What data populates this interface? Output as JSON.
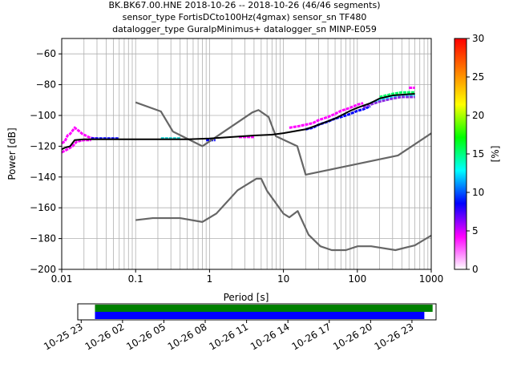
{
  "title_lines": [
    "BK.BK67.00.HNE   2018-10-26 -- 2018-10-26  (46/46 segments)",
    "sensor_type FortisDCto100Hz(4gmax) sensor_sn TF480",
    "datalogger_type GuralpMinimus+ datalogger_sn MINP-E059"
  ],
  "chart_data": [
    {
      "type": "line",
      "xlabel": "Period [s]",
      "ylabel": "Power [dB]",
      "xscale": "log",
      "xlim": [
        0.01,
        1000
      ],
      "ylim": [
        -200,
        -50
      ],
      "x_ticks": [
        0.01,
        0.1,
        1,
        10,
        100,
        1000
      ],
      "x_tick_labels": [
        "0.01",
        "0.1",
        "1",
        "10",
        "100",
        "1000"
      ],
      "y_ticks": [
        -200,
        -180,
        -160,
        -140,
        -120,
        -100,
        -80,
        -60
      ],
      "y_tick_labels": [
        "−200",
        "−180",
        "−160",
        "−140",
        "−120",
        "−100",
        "−80",
        "−60"
      ],
      "grid": true,
      "colorbar": {
        "label": "[%]",
        "range": [
          0,
          30
        ],
        "ticks": [
          0,
          5,
          10,
          15,
          20,
          25,
          30
        ],
        "tick_labels": [
          "0",
          "5",
          "10",
          "15",
          "20",
          "25",
          "30"
        ],
        "colormap": [
          "#ffffff",
          "#ff00ff",
          "#0000ff",
          "#00ffff",
          "#00ff00",
          "#ffff00",
          "#ff8000",
          "#ff0000"
        ]
      },
      "series": [
        {
          "role": "noise-model-upper",
          "color": "#666666",
          "x": [
            0.1,
            0.22,
            0.32,
            0.8,
            3.8,
            4.6,
            6.3,
            7.9,
            15.4,
            20,
            354.8,
            1000
          ],
          "y": [
            -91.5,
            -97.4,
            -110.5,
            -120,
            -98,
            -96.5,
            -101,
            -113.5,
            -120,
            -138.5,
            -126,
            -111.6
          ]
        },
        {
          "role": "noise-model-lower",
          "color": "#666666",
          "x": [
            0.1,
            0.17,
            0.4,
            0.8,
            1.24,
            2.4,
            4.3,
            5,
            6,
            10,
            12,
            15.6,
            21.9,
            31.6,
            45,
            70,
            101,
            154,
            328,
            600,
            1000
          ],
          "y": [
            -168,
            -166.7,
            -166.7,
            -169.2,
            -163.7,
            -148.6,
            -141.1,
            -141.1,
            -149,
            -163.8,
            -166.2,
            -162.1,
            -177.5,
            -185,
            -187.5,
            -187.5,
            -185,
            -185,
            -187.5,
            -184.4,
            -178
          ]
        },
        {
          "role": "mean-psd",
          "color": "#000000",
          "x": [
            0.01,
            0.011,
            0.013,
            0.015,
            0.02,
            0.05,
            0.1,
            0.2,
            0.5,
            1,
            2,
            4,
            7,
            10,
            20,
            30,
            50,
            80,
            100,
            150,
            200,
            300,
            400,
            600
          ],
          "y": [
            -122,
            -121,
            -120,
            -116,
            -115.5,
            -115.5,
            -115.5,
            -115.5,
            -115.5,
            -115,
            -114,
            -113,
            -112.5,
            -111.5,
            -109,
            -106,
            -102,
            -97,
            -95,
            -92,
            -89,
            -87,
            -86.5,
            -86
          ]
        }
      ],
      "histogram_bands": [
        {
          "color": "#ff00ff",
          "x": [
            0.01,
            0.011,
            0.012,
            0.013,
            0.015,
            0.017,
            0.019,
            0.021,
            0.023,
            0.027,
            0.03
          ],
          "y": [
            -118,
            -117,
            -113,
            -112,
            -108,
            -110,
            -112,
            -113,
            -114,
            -115,
            -115
          ]
        },
        {
          "color": "#ff00ff",
          "x": [
            0.01,
            0.012,
            0.014,
            0.016,
            0.02,
            0.025
          ],
          "y": [
            -124,
            -122,
            -120,
            -117,
            -116,
            -116
          ]
        },
        {
          "color": "#0000ff",
          "x": [
            0.025,
            0.04,
            0.06
          ],
          "y": [
            -115,
            -115,
            -115
          ]
        },
        {
          "color": "#00c8c8",
          "x": [
            0.22,
            0.3,
            0.4
          ],
          "y": [
            -115,
            -115,
            -115
          ]
        },
        {
          "color": "#0000ff",
          "x": [
            0.9,
            1.2
          ],
          "y": [
            -116,
            -116
          ]
        },
        {
          "color": "#ff00ff",
          "x": [
            2.5,
            4
          ],
          "y": [
            -114,
            -114
          ]
        },
        {
          "color": "#ff00ff",
          "x": [
            12,
            16,
            20,
            25,
            30,
            40,
            50,
            60,
            70,
            80,
            90,
            100,
            120
          ],
          "y": [
            -108,
            -107,
            -106,
            -105,
            -103,
            -101,
            -99,
            -97,
            -96,
            -95,
            -94,
            -93,
            -92
          ]
        },
        {
          "color": "#0000ff",
          "x": [
            20,
            25,
            30,
            40,
            50,
            60,
            70,
            80,
            100,
            120,
            150
          ],
          "y": [
            -109,
            -108,
            -106,
            -104,
            -102,
            -101,
            -100,
            -99,
            -97,
            -96,
            -94
          ]
        },
        {
          "color": "#00ffff",
          "x": [
            150,
            200,
            300,
            400,
            500,
            600
          ],
          "y": [
            -92,
            -90,
            -88,
            -87,
            -87,
            -87
          ]
        },
        {
          "color": "#00ff66",
          "x": [
            200,
            300,
            400,
            500,
            600
          ],
          "y": [
            -88,
            -86,
            -85,
            -85,
            -85
          ]
        },
        {
          "color": "#ff00ff",
          "x": [
            500,
            600
          ],
          "y": [
            -82,
            -82
          ]
        },
        {
          "color": "#8a2be2",
          "x": [
            120,
            150,
            200,
            300,
            400,
            500,
            600
          ],
          "y": [
            -95,
            -93,
            -91,
            -89,
            -88,
            -88,
            -88
          ]
        }
      ]
    },
    {
      "type": "timeline",
      "tick_labels": [
        "10-25 23",
        "10-26 02",
        "10-26 05",
        "10-26 08",
        "10-26 11",
        "10-26 14",
        "10-26 17",
        "10-26 20",
        "10-26 23"
      ],
      "tick_hours": [
        -1,
        2,
        5,
        8,
        11,
        14,
        17,
        20,
        23
      ],
      "xlim_hours": [
        -1.25,
        24.75
      ],
      "bars": [
        {
          "color": "#008000",
          "start_hour": 0,
          "end_hour": 24.5
        },
        {
          "color": "#0000ff",
          "start_hour": 0,
          "end_hour": 23.9
        }
      ]
    }
  ]
}
